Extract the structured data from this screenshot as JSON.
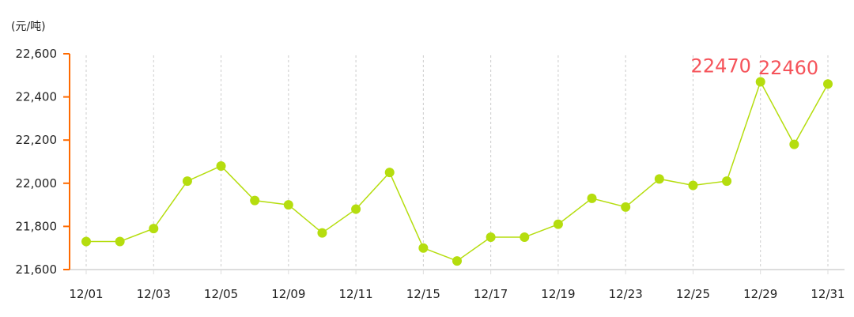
{
  "chart_data": {
    "type": "line",
    "ylabel": "(元/吨)",
    "ylim": [
      21600,
      22600
    ],
    "yticks": [
      "21,600",
      "21,800",
      "22,000",
      "22,200",
      "22,400",
      "22,600"
    ],
    "ytick_values": [
      21600,
      21800,
      22000,
      22200,
      22400,
      22600
    ],
    "categories": [
      "12/01",
      "",
      "12/03",
      "",
      "12/05",
      "",
      "12/09",
      "",
      "12/11",
      "",
      "12/15",
      "",
      "12/17",
      "",
      "12/19",
      "",
      "12/23",
      "",
      "12/25",
      "",
      "12/29",
      "",
      "12/31"
    ],
    "values": [
      21730,
      21730,
      21790,
      22010,
      22080,
      21920,
      21900,
      21770,
      21880,
      22050,
      21700,
      21640,
      21750,
      21750,
      21810,
      21930,
      21890,
      22020,
      21990,
      22010,
      22470,
      22180,
      22460
    ],
    "annotations": [
      {
        "index": 20,
        "text": "22470"
      },
      {
        "index": 22,
        "text": "22460"
      }
    ],
    "grid": "vertical dashed at labeled dates",
    "legend": "none",
    "colors": {
      "line": "#b5dd0e",
      "axis": "#ff6a00",
      "label": "#f5535a",
      "grid": "#cccccc"
    }
  }
}
